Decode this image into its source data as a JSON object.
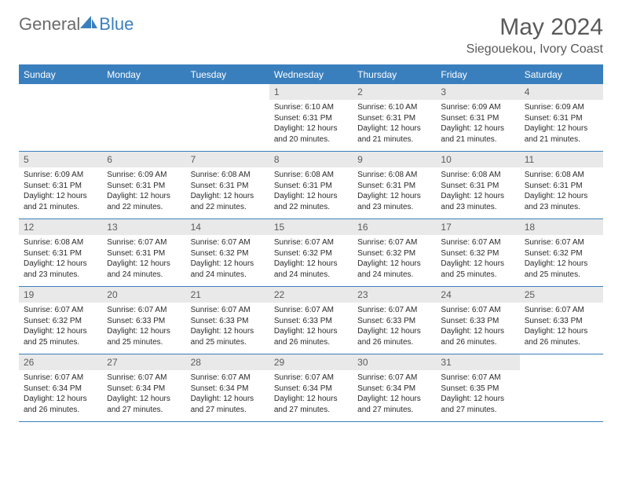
{
  "brand": {
    "text1": "General",
    "text2": "Blue"
  },
  "title": "May 2024",
  "location": "Siegouekou, Ivory Coast",
  "colors": {
    "brand_blue": "#3a7fbd",
    "gray_text": "#595959",
    "daynum_bg": "#e9e9e9",
    "body_text": "#2a2a2a",
    "background": "#ffffff"
  },
  "day_headers": [
    "Sunday",
    "Monday",
    "Tuesday",
    "Wednesday",
    "Thursday",
    "Friday",
    "Saturday"
  ],
  "weeks": [
    [
      {
        "n": "",
        "sr": "",
        "ss": "",
        "dl": ""
      },
      {
        "n": "",
        "sr": "",
        "ss": "",
        "dl": ""
      },
      {
        "n": "",
        "sr": "",
        "ss": "",
        "dl": ""
      },
      {
        "n": "1",
        "sr": "6:10 AM",
        "ss": "6:31 PM",
        "dl": "12 hours and 20 minutes."
      },
      {
        "n": "2",
        "sr": "6:10 AM",
        "ss": "6:31 PM",
        "dl": "12 hours and 21 minutes."
      },
      {
        "n": "3",
        "sr": "6:09 AM",
        "ss": "6:31 PM",
        "dl": "12 hours and 21 minutes."
      },
      {
        "n": "4",
        "sr": "6:09 AM",
        "ss": "6:31 PM",
        "dl": "12 hours and 21 minutes."
      }
    ],
    [
      {
        "n": "5",
        "sr": "6:09 AM",
        "ss": "6:31 PM",
        "dl": "12 hours and 21 minutes."
      },
      {
        "n": "6",
        "sr": "6:09 AM",
        "ss": "6:31 PM",
        "dl": "12 hours and 22 minutes."
      },
      {
        "n": "7",
        "sr": "6:08 AM",
        "ss": "6:31 PM",
        "dl": "12 hours and 22 minutes."
      },
      {
        "n": "8",
        "sr": "6:08 AM",
        "ss": "6:31 PM",
        "dl": "12 hours and 22 minutes."
      },
      {
        "n": "9",
        "sr": "6:08 AM",
        "ss": "6:31 PM",
        "dl": "12 hours and 23 minutes."
      },
      {
        "n": "10",
        "sr": "6:08 AM",
        "ss": "6:31 PM",
        "dl": "12 hours and 23 minutes."
      },
      {
        "n": "11",
        "sr": "6:08 AM",
        "ss": "6:31 PM",
        "dl": "12 hours and 23 minutes."
      }
    ],
    [
      {
        "n": "12",
        "sr": "6:08 AM",
        "ss": "6:31 PM",
        "dl": "12 hours and 23 minutes."
      },
      {
        "n": "13",
        "sr": "6:07 AM",
        "ss": "6:31 PM",
        "dl": "12 hours and 24 minutes."
      },
      {
        "n": "14",
        "sr": "6:07 AM",
        "ss": "6:32 PM",
        "dl": "12 hours and 24 minutes."
      },
      {
        "n": "15",
        "sr": "6:07 AM",
        "ss": "6:32 PM",
        "dl": "12 hours and 24 minutes."
      },
      {
        "n": "16",
        "sr": "6:07 AM",
        "ss": "6:32 PM",
        "dl": "12 hours and 24 minutes."
      },
      {
        "n": "17",
        "sr": "6:07 AM",
        "ss": "6:32 PM",
        "dl": "12 hours and 25 minutes."
      },
      {
        "n": "18",
        "sr": "6:07 AM",
        "ss": "6:32 PM",
        "dl": "12 hours and 25 minutes."
      }
    ],
    [
      {
        "n": "19",
        "sr": "6:07 AM",
        "ss": "6:32 PM",
        "dl": "12 hours and 25 minutes."
      },
      {
        "n": "20",
        "sr": "6:07 AM",
        "ss": "6:33 PM",
        "dl": "12 hours and 25 minutes."
      },
      {
        "n": "21",
        "sr": "6:07 AM",
        "ss": "6:33 PM",
        "dl": "12 hours and 25 minutes."
      },
      {
        "n": "22",
        "sr": "6:07 AM",
        "ss": "6:33 PM",
        "dl": "12 hours and 26 minutes."
      },
      {
        "n": "23",
        "sr": "6:07 AM",
        "ss": "6:33 PM",
        "dl": "12 hours and 26 minutes."
      },
      {
        "n": "24",
        "sr": "6:07 AM",
        "ss": "6:33 PM",
        "dl": "12 hours and 26 minutes."
      },
      {
        "n": "25",
        "sr": "6:07 AM",
        "ss": "6:33 PM",
        "dl": "12 hours and 26 minutes."
      }
    ],
    [
      {
        "n": "26",
        "sr": "6:07 AM",
        "ss": "6:34 PM",
        "dl": "12 hours and 26 minutes."
      },
      {
        "n": "27",
        "sr": "6:07 AM",
        "ss": "6:34 PM",
        "dl": "12 hours and 27 minutes."
      },
      {
        "n": "28",
        "sr": "6:07 AM",
        "ss": "6:34 PM",
        "dl": "12 hours and 27 minutes."
      },
      {
        "n": "29",
        "sr": "6:07 AM",
        "ss": "6:34 PM",
        "dl": "12 hours and 27 minutes."
      },
      {
        "n": "30",
        "sr": "6:07 AM",
        "ss": "6:34 PM",
        "dl": "12 hours and 27 minutes."
      },
      {
        "n": "31",
        "sr": "6:07 AM",
        "ss": "6:35 PM",
        "dl": "12 hours and 27 minutes."
      },
      {
        "n": "",
        "sr": "",
        "ss": "",
        "dl": ""
      }
    ]
  ],
  "labels": {
    "sunrise": "Sunrise:",
    "sunset": "Sunset:",
    "daylight": "Daylight:"
  }
}
